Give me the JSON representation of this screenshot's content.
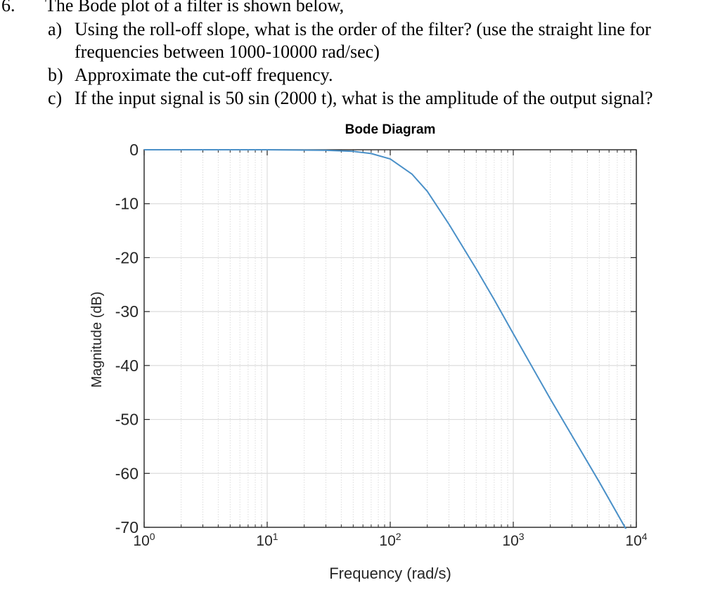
{
  "question": {
    "number": "6.",
    "heading": "The Bode plot of a filter is shown below,",
    "parts": [
      {
        "label": "a)",
        "lines": [
          "Using the roll-off slope, what is the order of the filter? (use the straight line for",
          "frequencies between 1000-10000 rad/sec)"
        ]
      },
      {
        "label": "b)",
        "lines": [
          "Approximate the cut-off frequency."
        ]
      },
      {
        "label": "c)",
        "lines": [
          "If the input signal is   50 sin (2000 t), what is the amplitude of the output signal?"
        ]
      }
    ]
  },
  "chart_data": {
    "type": "line",
    "title": "Bode Diagram",
    "xlabel": "Frequency  (rad/s)",
    "ylabel": "Magnitude (dB)",
    "x_scale": "log",
    "xlim": [
      1,
      10000
    ],
    "ylim": [
      -70,
      0
    ],
    "x_ticks": [
      {
        "value": 1,
        "base": "10",
        "exp": "0"
      },
      {
        "value": 10,
        "base": "10",
        "exp": "1"
      },
      {
        "value": 100,
        "base": "10",
        "exp": "2"
      },
      {
        "value": 1000,
        "base": "10",
        "exp": "3"
      },
      {
        "value": 10000,
        "base": "10",
        "exp": "4"
      }
    ],
    "y_ticks": [
      0,
      -10,
      -20,
      -30,
      -40,
      -50,
      -60,
      -70
    ],
    "grid": true,
    "series_color": "#4a90c8",
    "series": [
      {
        "x": [
          1,
          10,
          30,
          50,
          70,
          100,
          150,
          200,
          300,
          500,
          700,
          1000,
          2000,
          5000,
          10000
        ],
        "y": [
          0,
          0,
          -0.1,
          -0.3,
          -0.7,
          -1.7,
          -4.5,
          -7.7,
          -13.8,
          -22.1,
          -27.8,
          -34.1,
          -46.2,
          -61.6,
          -73.7
        ]
      }
    ]
  }
}
